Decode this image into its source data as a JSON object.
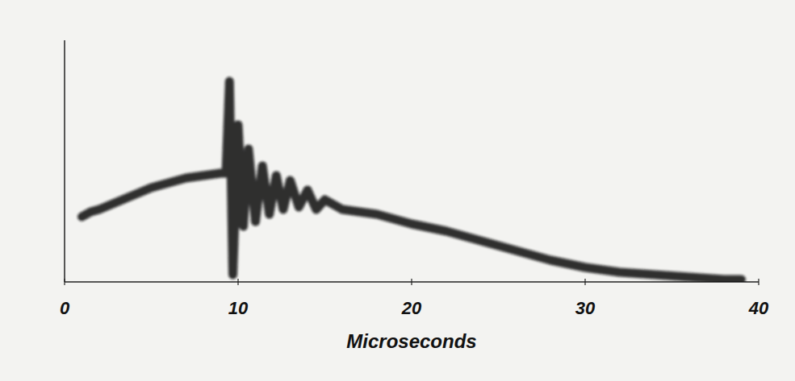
{
  "chart_data": {
    "type": "line",
    "xlabel": "Microseconds",
    "x": [
      1,
      1.5,
      2,
      3,
      4,
      5,
      6,
      7,
      8,
      9,
      9.3,
      9.5,
      9.7,
      10,
      10.3,
      10.6,
      11,
      11.4,
      11.8,
      12.2,
      12.6,
      13,
      13.5,
      14,
      14.5,
      15,
      16,
      17,
      18,
      19,
      20,
      22,
      24,
      26,
      28,
      30,
      32,
      34,
      36,
      38,
      39
    ],
    "values": [
      2.7,
      2.9,
      3.0,
      3.3,
      3.6,
      3.9,
      4.1,
      4.3,
      4.4,
      4.5,
      4.5,
      8.3,
      0.3,
      6.5,
      2.3,
      5.5,
      2.5,
      4.8,
      2.8,
      4.4,
      3.0,
      4.2,
      3.1,
      3.8,
      3.0,
      3.4,
      3.0,
      2.9,
      2.8,
      2.6,
      2.4,
      2.1,
      1.7,
      1.3,
      0.9,
      0.6,
      0.4,
      0.3,
      0.2,
      0.1,
      0.1
    ],
    "color": "#111111",
    "xlim": [
      0,
      40
    ],
    "xticks": [
      0,
      10,
      20,
      30,
      40
    ],
    "ylim": [
      0,
      10
    ],
    "grid": false,
    "tick_labels": "x"
  }
}
